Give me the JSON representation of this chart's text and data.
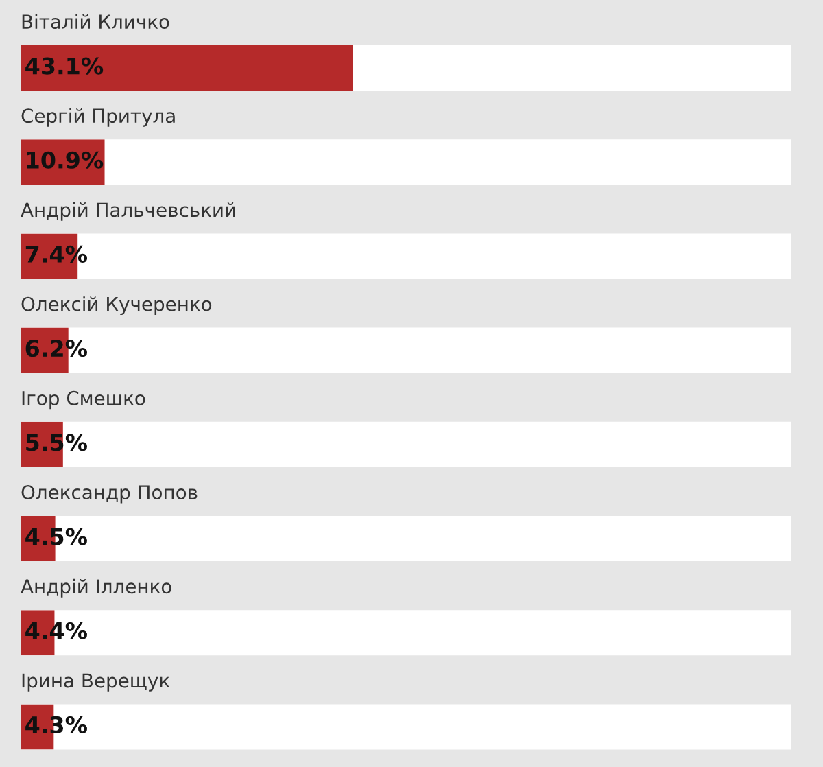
{
  "chart_data": {
    "type": "bar",
    "orientation": "horizontal",
    "categories": [
      "Віталій Кличко",
      "Сергій Притула",
      "Андрій Пальчевський",
      "Олексій Кучеренко",
      "Ігор Смешко",
      "Олександр Попов",
      "Андрій Ілленко",
      "Ірина Верещук"
    ],
    "values": [
      43.1,
      10.9,
      7.4,
      6.2,
      5.5,
      4.5,
      4.4,
      4.3
    ],
    "value_labels": [
      "43.1%",
      "10.9%",
      "7.4%",
      "6.2%",
      "5.5%",
      "4.5%",
      "4.4%",
      "4.3%"
    ],
    "color": "#b52a2a",
    "xlim": [
      0,
      100
    ]
  }
}
